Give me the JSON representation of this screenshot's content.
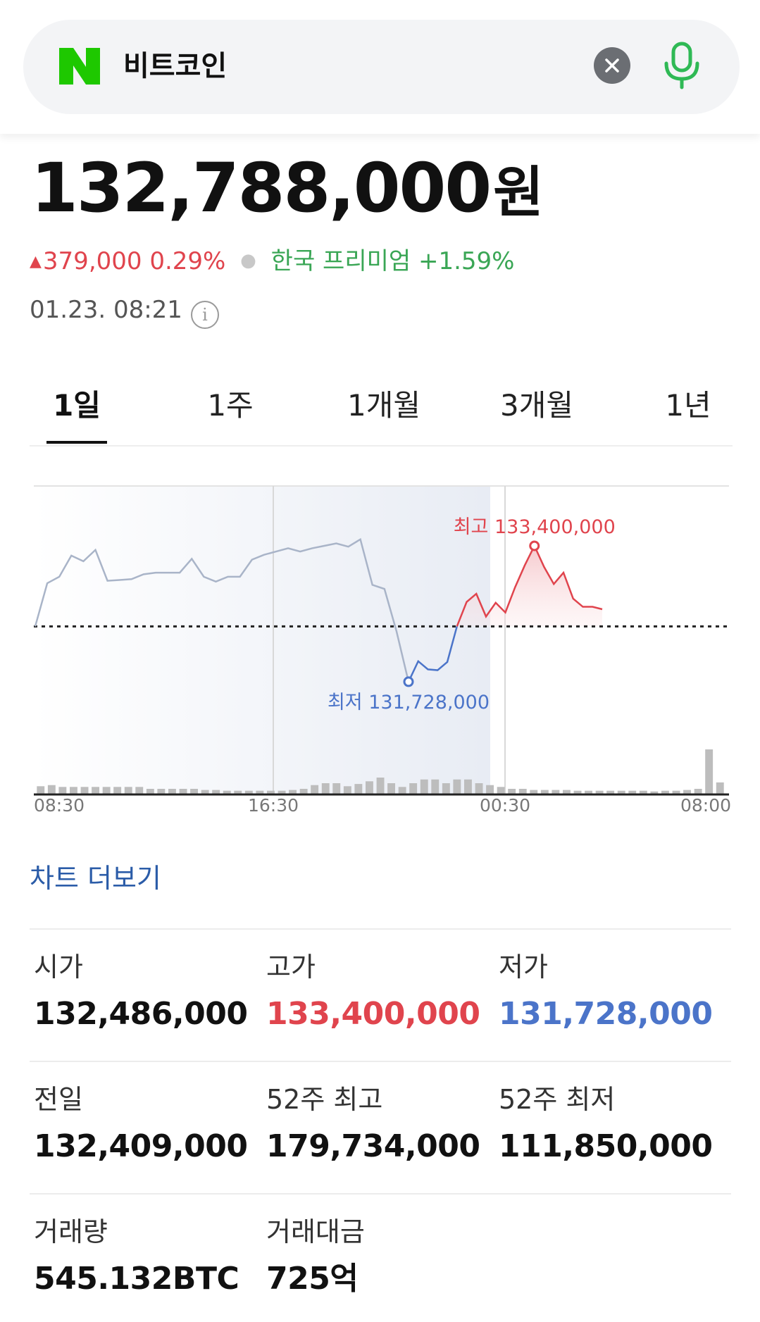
{
  "search": {
    "query": "비트코인"
  },
  "quote": {
    "price": "132,788,000",
    "unit": "원",
    "change": "379,000",
    "change_pct": "0.29%",
    "premium_label": "한국 프리미엄",
    "premium_value": "+1.59%",
    "timestamp": "01.23. 08:21",
    "info_symbol": "i"
  },
  "tabs": [
    {
      "label": "1일",
      "active": true
    },
    {
      "label": "1주",
      "active": false
    },
    {
      "label": "1개월",
      "active": false
    },
    {
      "label": "3개월",
      "active": false
    },
    {
      "label": "1년",
      "active": false
    }
  ],
  "chart_data": {
    "type": "line",
    "x_ticks": [
      "08:30",
      "16:30",
      "00:30",
      "08:00"
    ],
    "reference_value": 132409000,
    "ylim": [
      131450000,
      134050000
    ],
    "previous_session_color": "#a9b4c8",
    "up_color": "#e0444d",
    "down_color": "#4b74c9",
    "previous_session": [
      132409000,
      132940000,
      133020000,
      133280000,
      133210000,
      133350000,
      132970000,
      132980000,
      132990000,
      133050000,
      133070000,
      133070000,
      133070000,
      133240000,
      133020000,
      132960000,
      133020000,
      133020000,
      133230000,
      133290000,
      133330000,
      133370000,
      133330000,
      133370000,
      133400000,
      133430000,
      133390000,
      133480000,
      132920000,
      132870000,
      132350000,
      131728000
    ],
    "current_session": [
      131728000,
      131980000,
      131880000,
      131870000,
      131970000,
      132409000,
      132710000,
      132810000,
      132530000,
      132700000,
      132580000,
      132890000,
      133160000,
      133400000,
      133140000,
      132930000,
      133070000,
      132750000,
      132650000,
      132650000,
      132620000
    ],
    "annotations": [
      {
        "label": "최고",
        "value": "133,400,000",
        "kind": "high"
      },
      {
        "label": "최저",
        "value": "131,728,000",
        "kind": "low"
      }
    ],
    "volume": [
      2.2,
      2.5,
      2.0,
      2.0,
      2.0,
      2.0,
      2.0,
      2.0,
      2.0,
      2.0,
      1.5,
      1.5,
      1.5,
      1.5,
      1.5,
      1.2,
      1.2,
      1.0,
      1.0,
      1.0,
      1.0,
      1.0,
      1.0,
      1.2,
      1.5,
      2.5,
      3.0,
      3.0,
      2.2,
      2.8,
      3.5,
      4.5,
      3.0,
      2.0,
      3.0,
      4.0,
      4.0,
      3.0,
      4.0,
      4.0,
      3.0,
      2.5,
      2.0,
      1.5,
      1.5,
      1.2,
      1.2,
      1.2,
      1.2,
      1.0,
      1.0,
      1.0,
      1.0,
      1.0,
      1.0,
      1.0,
      0.8,
      1.0,
      1.0,
      1.2,
      1.5,
      12.0,
      3.2
    ]
  },
  "more_chart": "차트 더보기",
  "stats": [
    {
      "label": "시가",
      "value": "132,486,000",
      "tone": "normal"
    },
    {
      "label": "고가",
      "value": "133,400,000",
      "tone": "high"
    },
    {
      "label": "저가",
      "value": "131,728,000",
      "tone": "low"
    },
    {
      "label": "전일",
      "value": "132,409,000",
      "tone": "normal"
    },
    {
      "label": "52주 최고",
      "value": "179,734,000",
      "tone": "normal"
    },
    {
      "label": "52주 최저",
      "value": "111,850,000",
      "tone": "normal"
    },
    {
      "label": "거래량",
      "value": "545.132BTC",
      "tone": "normal"
    },
    {
      "label": "거래대금",
      "value": "725억",
      "tone": "normal"
    }
  ]
}
